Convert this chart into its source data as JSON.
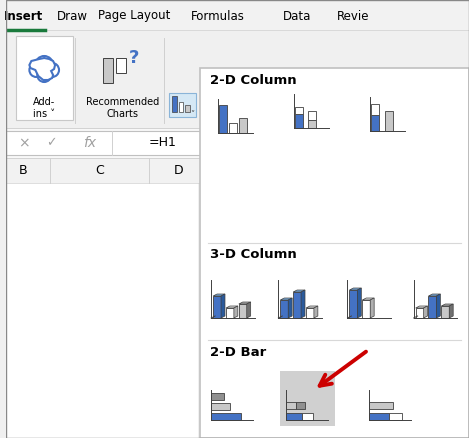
{
  "bg_color": "#f0f0f0",
  "dropdown_bg": "#ffffff",
  "dropdown_border": "#c0c0c0",
  "tab_labels": [
    "Insert",
    "Draw",
    "Page Layout",
    "Formulas",
    "Data",
    "Revie"
  ],
  "active_tab_color": "#1a7a3c",
  "blue_color": "#4472c4",
  "gray_color": "#a0a0a0",
  "white_color": "#ffffff",
  "highlight_bg": "#d0d0d0",
  "arrow_color": "#cc0000",
  "formula_bar_border": "#d0d0d0",
  "cell_labels": [
    "B",
    "C",
    "D"
  ],
  "formula_text": "=H1",
  "section_2d_col": "2-D Column",
  "section_3d_col": "3-D Column",
  "section_2d_bar": "2-D Bar"
}
